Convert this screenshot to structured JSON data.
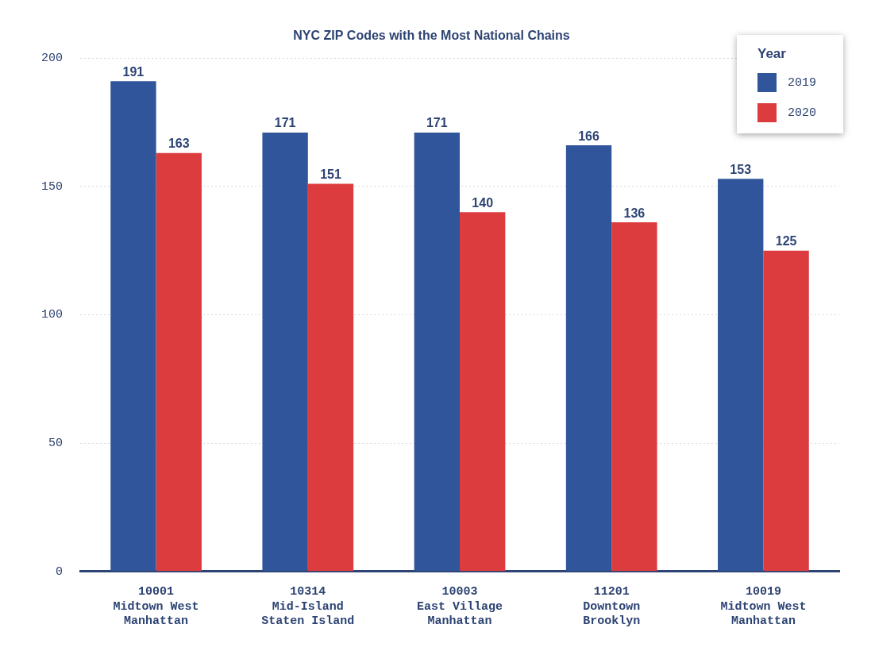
{
  "chart_data": {
    "type": "bar",
    "title": "NYC ZIP Codes with the Most National Chains",
    "categories": [
      [
        "10001",
        "Midtown West",
        "Manhattan"
      ],
      [
        "10314",
        "Mid-Island",
        "Staten Island"
      ],
      [
        "10003",
        "East Village",
        "Manhattan"
      ],
      [
        "11201",
        "Downtown",
        "Brooklyn"
      ],
      [
        "10019",
        "Midtown West",
        "Manhattan"
      ]
    ],
    "series": [
      {
        "name": "2019",
        "color": "#30559a",
        "values": [
          191,
          171,
          171,
          166,
          153
        ]
      },
      {
        "name": "2020",
        "color": "#dc3c3e",
        "values": [
          163,
          151,
          140,
          136,
          125
        ]
      }
    ],
    "legend_title": "Year",
    "legend": "upper right",
    "ylim": [
      0,
      200
    ],
    "yticks": [
      0,
      50,
      100,
      150,
      200
    ],
    "grid": true,
    "data_labels": true
  }
}
